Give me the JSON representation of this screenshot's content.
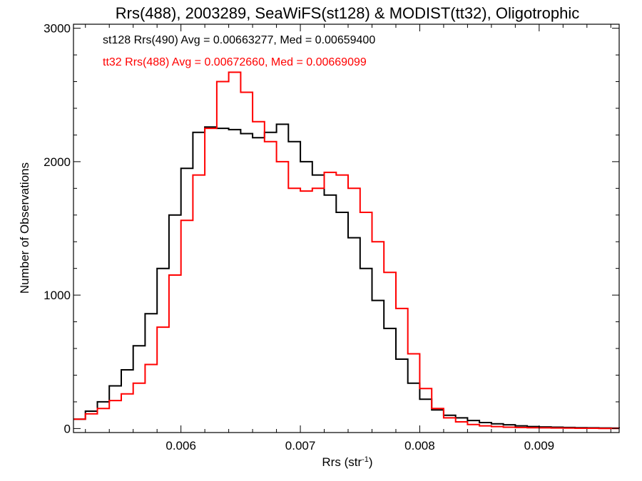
{
  "chart_data": {
    "type": "line",
    "title": "Rrs(488), 2003289, SeaWiFS(st128) & MODIST(tt32), Oligotrophic",
    "xlabel": "Rrs (str",
    "xlabel_sup": "-1",
    "xlabel_close": ")",
    "ylabel": "Number of Observations",
    "xlim": [
      0.0051,
      0.00967
    ],
    "ylim": [
      -30,
      3030
    ],
    "x_ticks": [
      {
        "value": 0.006,
        "label": "0.006"
      },
      {
        "value": 0.007,
        "label": "0.007"
      },
      {
        "value": 0.008,
        "label": "0.008"
      },
      {
        "value": 0.009,
        "label": "0.009"
      }
    ],
    "y_ticks": [
      {
        "value": 0,
        "label": "0"
      },
      {
        "value": 1000,
        "label": "1000"
      },
      {
        "value": 2000,
        "label": "2000"
      },
      {
        "value": 3000,
        "label": "3000"
      }
    ],
    "grid": false,
    "annotations": [
      {
        "text": "st128 Rrs(490) Avg = 0.00663277, Med = 0.00659400",
        "color": "#000000"
      },
      {
        "text": "tt32 Rrs(488) Avg = 0.00672660, Med = 0.00669099",
        "color": "#ff0000"
      }
    ],
    "series": [
      {
        "color": "#000000",
        "x": [
          0.0051,
          0.0052,
          0.0053,
          0.0054,
          0.0055,
          0.0056,
          0.0057,
          0.0058,
          0.0059,
          0.006,
          0.0061,
          0.0062,
          0.0063,
          0.0064,
          0.0065,
          0.0066,
          0.0067,
          0.0068,
          0.0069,
          0.007,
          0.0071,
          0.0072,
          0.0073,
          0.0074,
          0.0075,
          0.0076,
          0.0077,
          0.0078,
          0.0079,
          0.008,
          0.0081,
          0.0082,
          0.0083,
          0.0084,
          0.0085,
          0.0086,
          0.0087,
          0.0088,
          0.0089,
          0.009,
          0.0091,
          0.0092,
          0.0093,
          0.0094,
          0.0095,
          0.0096,
          0.00967
        ],
        "y": [
          70,
          130,
          200,
          320,
          440,
          620,
          860,
          1200,
          1600,
          1950,
          2220,
          2260,
          2250,
          2240,
          2210,
          2180,
          2220,
          2280,
          2150,
          2000,
          1900,
          1750,
          1620,
          1430,
          1200,
          960,
          750,
          520,
          340,
          220,
          140,
          100,
          80,
          60,
          45,
          35,
          28,
          20,
          15,
          12,
          10,
          8,
          6,
          5,
          4,
          3,
          2
        ]
      },
      {
        "color": "#ff0000",
        "x": [
          0.0051,
          0.0052,
          0.0053,
          0.0054,
          0.0055,
          0.0056,
          0.0057,
          0.0058,
          0.0059,
          0.006,
          0.0061,
          0.0062,
          0.0063,
          0.0064,
          0.0065,
          0.0066,
          0.0067,
          0.0068,
          0.0069,
          0.007,
          0.0071,
          0.0072,
          0.0073,
          0.0074,
          0.0075,
          0.0076,
          0.0077,
          0.0078,
          0.0079,
          0.008,
          0.0081,
          0.0082,
          0.0083,
          0.0084,
          0.0085,
          0.0086,
          0.0087,
          0.0088,
          0.0089,
          0.009,
          0.0091,
          0.0092,
          0.0093,
          0.0094,
          0.0095,
          0.0096,
          0.00967
        ],
        "y": [
          70,
          110,
          150,
          210,
          260,
          340,
          480,
          760,
          1150,
          1560,
          1900,
          2250,
          2600,
          2670,
          2520,
          2300,
          2150,
          2000,
          1800,
          1780,
          1800,
          1920,
          1900,
          1800,
          1620,
          1400,
          1170,
          900,
          560,
          300,
          150,
          80,
          50,
          30,
          20,
          15,
          10,
          8,
          6,
          5,
          4,
          3,
          2,
          2,
          1,
          1,
          1
        ]
      }
    ]
  }
}
